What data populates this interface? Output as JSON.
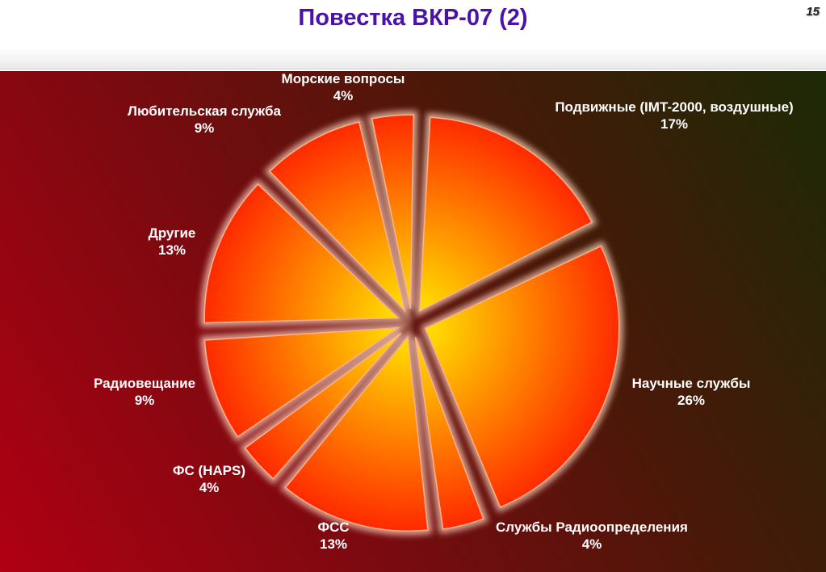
{
  "slide": {
    "title": "Повестка ВКР-07 (2)",
    "number": "15"
  },
  "colors": {
    "slice_gradient_inner": "#ffee00",
    "slice_gradient_outer": "#ff2a00",
    "slice_halo": "#ffd8c0",
    "label": "#ffffff"
  },
  "chart_data": {
    "type": "pie",
    "title": "",
    "exploded": true,
    "slices": [
      {
        "label": "Подвижные (IMT-2000, воздушные)",
        "value": 17,
        "value_label": "17%"
      },
      {
        "label": "Научные службы",
        "value": 26,
        "value_label": "26%"
      },
      {
        "label": "Службы Радиоопределения",
        "value": 4,
        "value_label": "4%"
      },
      {
        "label": "ФСС",
        "value": 13,
        "value_label": "13%"
      },
      {
        "label": "ФС (HAPS)",
        "value": 4,
        "value_label": "4%"
      },
      {
        "label": "Радиовещание",
        "value": 9,
        "value_label": "9%"
      },
      {
        "label": "Другие",
        "value": 13,
        "value_label": "13%"
      },
      {
        "label": "Любительская служба",
        "value": 9,
        "value_label": "9%"
      },
      {
        "label": "Морские вопросы",
        "value": 4,
        "value_label": "4%"
      }
    ]
  }
}
